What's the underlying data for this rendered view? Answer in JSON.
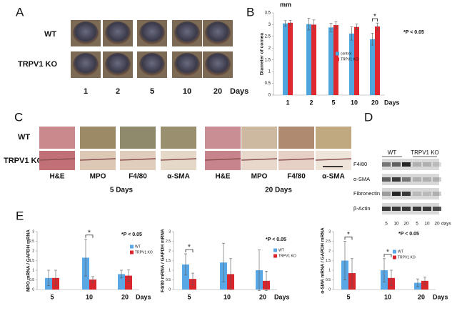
{
  "panel_labels": [
    "A",
    "B",
    "C",
    "D",
    "E"
  ],
  "panel_a": {
    "rows": [
      "WT",
      "TRPV1 KO"
    ],
    "columns": [
      "1",
      "2",
      "5",
      "10",
      "20"
    ],
    "x_label": "Days"
  },
  "panel_c": {
    "rows": [
      "WT",
      "TRPV1 KO"
    ],
    "stains": [
      "H&E",
      "MPO",
      "F4/80",
      "α-SMA",
      "H&E",
      "MPO",
      "F4/80",
      "α-SMA"
    ],
    "groups": [
      "5 Days",
      "20 Days"
    ]
  },
  "panel_d": {
    "proteins": [
      "F4/80",
      "α-SMA",
      "Fibronectin",
      "β-Actin"
    ],
    "groups": [
      "WT",
      "TRPV1 KO"
    ],
    "lanes": [
      "5",
      "10",
      "20",
      "5",
      "10",
      "20"
    ],
    "lane_unit": "days"
  },
  "chart_data": [
    {
      "type": "bar",
      "y_unit": "mm",
      "y_label": "Diameter of cornea",
      "x_label": "Days",
      "categories": [
        "1",
        "2",
        "5",
        "10",
        "20"
      ],
      "series": [
        {
          "name": "control",
          "color": "#4ea6dc",
          "values": [
            3.05,
            3.02,
            2.88,
            2.62,
            2.38
          ],
          "errors": [
            0.12,
            0.25,
            0.18,
            0.28,
            0.25
          ]
        },
        {
          "name": "TRPV1 KO",
          "color": "#e0262f",
          "values": [
            3.08,
            3.0,
            2.98,
            2.9,
            2.92
          ],
          "errors": [
            0.1,
            0.2,
            0.15,
            0.12,
            0.15
          ]
        }
      ],
      "ylim": [
        0,
        3.5
      ],
      "yticks": [
        0,
        0.5,
        1,
        1.5,
        2,
        2.5,
        3,
        3.5
      ],
      "annotation": "*P < 0.05",
      "significance_labels": [
        null,
        null,
        null,
        null,
        "*"
      ]
    },
    {
      "type": "bar",
      "y_label": "MPO mRNA / GAPDH mRNA",
      "x_label": "Days",
      "categories": [
        "5",
        "10",
        "20"
      ],
      "series": [
        {
          "name": "WT",
          "color": "#5aa7e6",
          "values": [
            0.6,
            1.65,
            0.8
          ],
          "errors": [
            0.4,
            0.95,
            0.2
          ]
        },
        {
          "name": "TRPV1 KO",
          "color": "#d9262c",
          "values": [
            0.6,
            0.52,
            0.72
          ],
          "errors": [
            0.4,
            0.15,
            0.3
          ]
        }
      ],
      "ylim": [
        0,
        3
      ],
      "yticks": [
        0,
        0.5,
        1,
        1.5,
        2,
        2.5,
        3
      ],
      "annotation": "*P < 0.05",
      "significance_labels": [
        null,
        "*",
        null
      ]
    },
    {
      "type": "bar",
      "y_label": "F4/80 mRNA / GAPDH mRNA",
      "x_label": "Days",
      "categories": [
        "5",
        "10",
        "20"
      ],
      "series": [
        {
          "name": "WT",
          "color": "#5aa7e6",
          "values": [
            1.3,
            1.4,
            1.0
          ],
          "errors": [
            0.55,
            1.0,
            1.05
          ]
        },
        {
          "name": "TRPV1 KO",
          "color": "#d9262c",
          "values": [
            0.55,
            0.8,
            0.45
          ],
          "errors": [
            0.3,
            0.8,
            0.5
          ]
        }
      ],
      "ylim": [
        0,
        3
      ],
      "yticks": [
        0,
        0.5,
        1,
        1.5,
        2,
        2.5,
        3
      ],
      "annotation": "*P < 0.05",
      "significance_labels": [
        "*",
        null,
        null
      ]
    },
    {
      "type": "bar",
      "y_label": "α-SMA mRNA / GAPDH mRNA",
      "x_label": "Days",
      "categories": [
        "5",
        "10",
        "20"
      ],
      "series": [
        {
          "name": "WT",
          "color": "#5aa7e6",
          "values": [
            1.5,
            1.0,
            0.35
          ],
          "errors": [
            1.0,
            0.6,
            0.2
          ]
        },
        {
          "name": "TRPV1 KO",
          "color": "#d9262c",
          "values": [
            0.85,
            0.6,
            0.45
          ],
          "errors": [
            0.75,
            0.4,
            0.2
          ]
        }
      ],
      "ylim": [
        0,
        3
      ],
      "yticks": [
        0,
        0.5,
        1,
        1.5,
        2,
        2.5,
        3
      ],
      "annotation": "*P < 0.05",
      "significance_labels": [
        "*",
        "*",
        null
      ]
    }
  ]
}
